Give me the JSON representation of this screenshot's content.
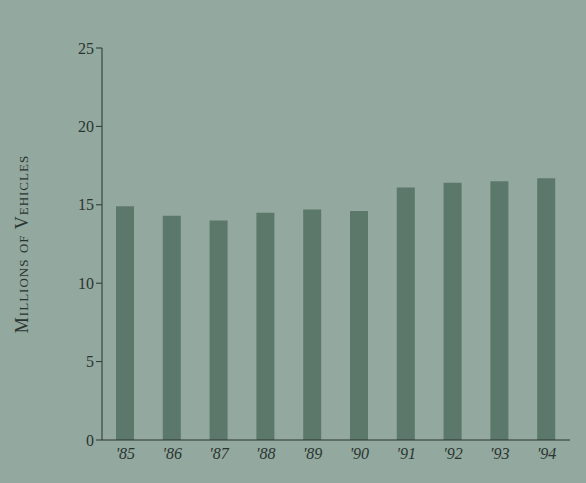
{
  "chart_data": {
    "type": "bar",
    "y_label": "Millions of Vehicles",
    "categories": [
      "'85",
      "'86",
      "'87",
      "'88",
      "'89",
      "'90",
      "'91",
      "'92",
      "'93",
      "'94"
    ],
    "values": [
      14.9,
      14.3,
      14.0,
      14.5,
      14.7,
      14.6,
      16.1,
      16.4,
      16.5,
      16.7
    ],
    "color": "#5b786b",
    "ylim": [
      0,
      25
    ],
    "yticks": [
      0,
      5,
      10,
      15,
      20,
      25
    ]
  }
}
